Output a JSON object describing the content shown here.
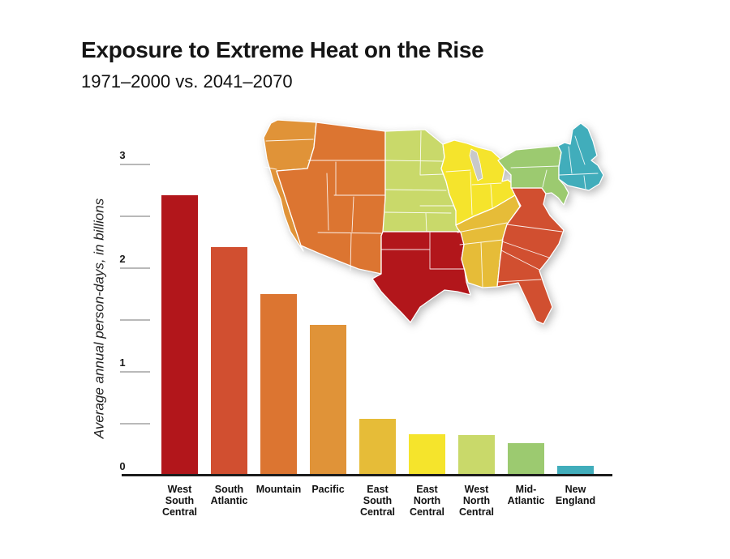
{
  "title": "Exposure to Extreme Heat on the Rise",
  "subtitle": "1971–2000 vs. 2041–2070",
  "chart_data": {
    "type": "bar",
    "title": "Exposure to Extreme Heat on the Rise",
    "subtitle": "1971–2000 vs. 2041–2070",
    "categories": [
      "West South Central",
      "South Atlantic",
      "Mountain",
      "Pacific",
      "East South Central",
      "East North Central",
      "West North Central",
      "Mid-Atlantic",
      "New England"
    ],
    "values": [
      2.7,
      2.2,
      1.75,
      1.45,
      0.55,
      0.4,
      0.39,
      0.31,
      0.09
    ],
    "colors": [
      "#b2161b",
      "#d14f30",
      "#dc7531",
      "#e09338",
      "#e6bc38",
      "#f5e42c",
      "#c9d96a",
      "#9cca70",
      "#41adbb"
    ],
    "xlabel": "",
    "ylabel": "Average annual person-days, in billions",
    "ylim": [
      0,
      3
    ],
    "yticks": [
      0,
      1,
      2,
      3
    ],
    "minor_yticks": [
      0.5,
      1.5,
      2.5
    ],
    "grid": false,
    "legend": false
  },
  "axis": {
    "ylabel": "Average annual person-days, in billions",
    "tick_labels": [
      "0",
      "1",
      "2",
      "3"
    ]
  },
  "bars": [
    {
      "region": "West South Central",
      "lines": [
        "West",
        "South",
        "Central"
      ],
      "value": 2.7,
      "color": "#b2161b"
    },
    {
      "region": "South Atlantic",
      "lines": [
        "South",
        "Atlantic"
      ],
      "value": 2.2,
      "color": "#d14f30"
    },
    {
      "region": "Mountain",
      "lines": [
        "Mountain"
      ],
      "value": 1.75,
      "color": "#dc7531"
    },
    {
      "region": "Pacific",
      "lines": [
        "Pacific"
      ],
      "value": 1.45,
      "color": "#e09338"
    },
    {
      "region": "East South Central",
      "lines": [
        "East",
        "South",
        "Central"
      ],
      "value": 0.55,
      "color": "#e6bc38"
    },
    {
      "region": "East North Central",
      "lines": [
        "East",
        "North",
        "Central"
      ],
      "value": 0.4,
      "color": "#f5e42c"
    },
    {
      "region": "West North Central",
      "lines": [
        "West",
        "North",
        "Central"
      ],
      "value": 0.39,
      "color": "#c9d96a"
    },
    {
      "region": "Mid-Atlantic",
      "lines": [
        "Mid-",
        "Atlantic"
      ],
      "value": 0.31,
      "color": "#9cca70"
    },
    {
      "region": "New England",
      "lines": [
        "New",
        "England"
      ],
      "value": 0.09,
      "color": "#41adbb"
    }
  ],
  "map": {
    "lake_color": "#c9c9c9",
    "regions": [
      {
        "id": "pacific",
        "name": "Pacific",
        "color": "#e09338"
      },
      {
        "id": "mountain",
        "name": "Mountain",
        "color": "#dc7531"
      },
      {
        "id": "wnc",
        "name": "West North Central",
        "color": "#c9d96a"
      },
      {
        "id": "wsc",
        "name": "West South Central",
        "color": "#b2161b"
      },
      {
        "id": "enc",
        "name": "East North Central",
        "color": "#f5e42c"
      },
      {
        "id": "esc",
        "name": "East South Central",
        "color": "#e6bc38"
      },
      {
        "id": "sa",
        "name": "South Atlantic",
        "color": "#d14f30"
      },
      {
        "id": "midatl",
        "name": "Mid-Atlantic",
        "color": "#9cca70"
      },
      {
        "id": "ne",
        "name": "New England",
        "color": "#41adbb"
      }
    ]
  }
}
